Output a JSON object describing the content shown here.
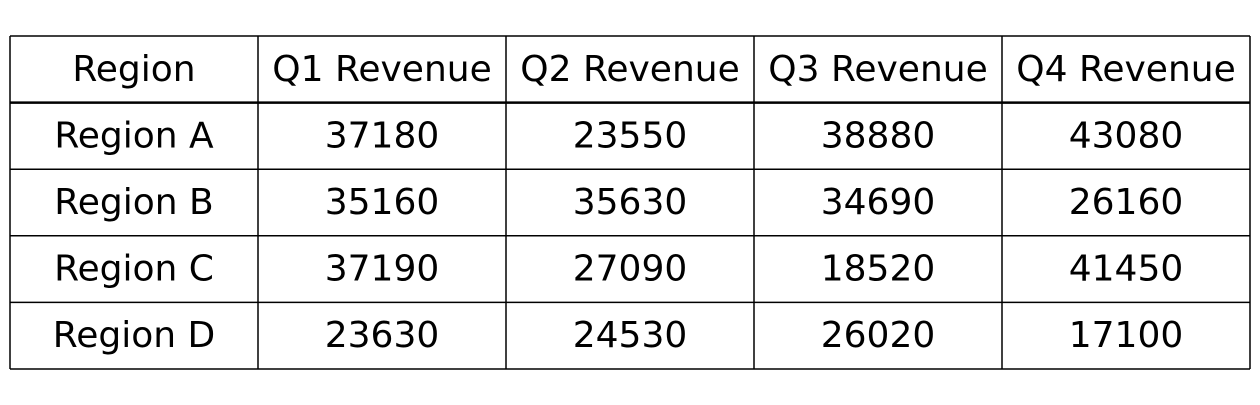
{
  "chart_data": {
    "type": "table",
    "columns": [
      "Region",
      "Q1 Revenue",
      "Q2 Revenue",
      "Q3 Revenue",
      "Q4 Revenue"
    ],
    "rows": [
      [
        "Region A",
        "37180",
        "23550",
        "38880",
        "43080"
      ],
      [
        "Region B",
        "35160",
        "35630",
        "34690",
        "26160"
      ],
      [
        "Region C",
        "37190",
        "27090",
        "18520",
        "41450"
      ],
      [
        "Region D",
        "23630",
        "24530",
        "26020",
        "17100"
      ]
    ]
  },
  "colors": {
    "background": "#ffffff",
    "text": "#000000",
    "border": "#000000"
  }
}
